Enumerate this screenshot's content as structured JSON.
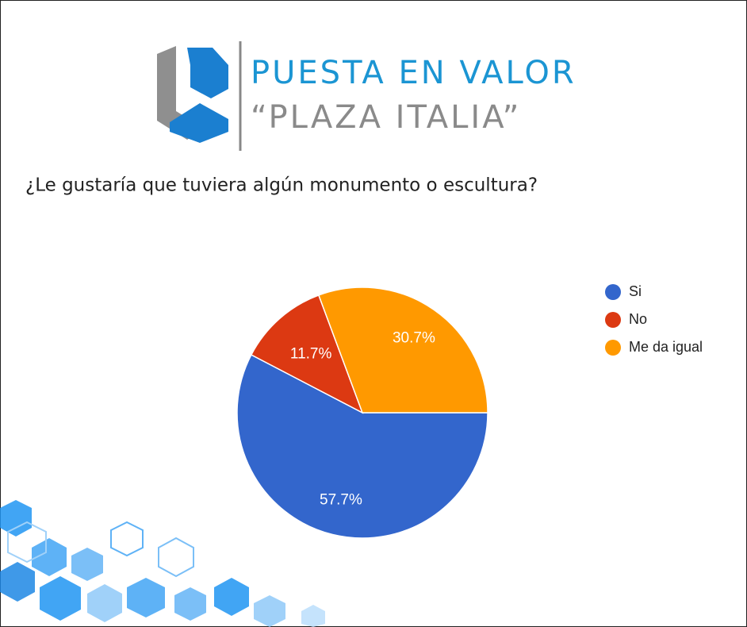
{
  "header": {
    "title": "PUESTA EN VALOR",
    "subtitle": "“PLAZA ITALIA”"
  },
  "chart_data": {
    "type": "pie",
    "title": "¿Le gustaría que tuviera algún monumento o escultura?",
    "categories": [
      "Si",
      "No",
      "Me da igual"
    ],
    "values": [
      57.7,
      11.7,
      30.7
    ],
    "value_labels": [
      "57.7%",
      "11.7%",
      "30.7%"
    ],
    "colors": [
      "#3366cc",
      "#dc3912",
      "#ff9900"
    ],
    "legend": "right"
  }
}
